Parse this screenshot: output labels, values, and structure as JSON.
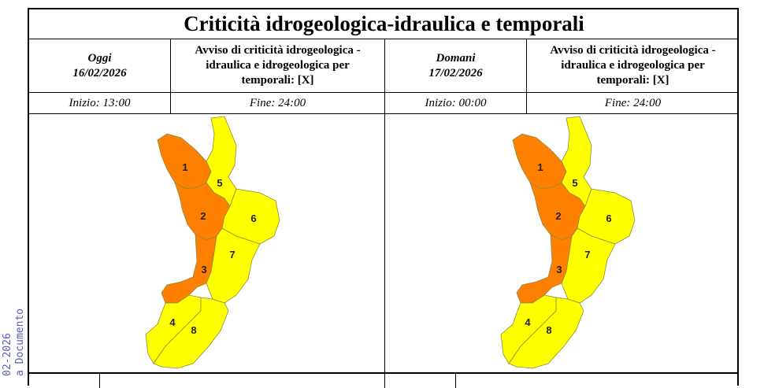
{
  "side_text": {
    "line1": "02-2026",
    "line2": "a Documento"
  },
  "title": "Criticità idrogeologica-idraulica e temporali",
  "today": {
    "label": "Oggi",
    "date": "16/02/2026",
    "notice": "Avviso di criticità idrogeologica - idraulica e idrogeologica per temporali: [X]",
    "start": "Inizio: 13:00",
    "end": "Fine: 24:00"
  },
  "tomorrow": {
    "label": "Domani",
    "date": "17/02/2026",
    "notice": "Avviso di criticità idrogeologica - idraulica e idrogeologica per temporali: [X]",
    "start": "Inizio: 00:00",
    "end": "Fine: 24:00"
  },
  "colors": {
    "orange": "#ff7f00",
    "yellow": "#ffff00"
  },
  "maps": {
    "today": [
      {
        "zone": "1",
        "level": "orange"
      },
      {
        "zone": "2",
        "level": "orange"
      },
      {
        "zone": "3",
        "level": "orange"
      },
      {
        "zone": "4",
        "level": "yellow"
      },
      {
        "zone": "5",
        "level": "yellow"
      },
      {
        "zone": "6",
        "level": "yellow"
      },
      {
        "zone": "7",
        "level": "yellow"
      },
      {
        "zone": "8",
        "level": "yellow"
      }
    ],
    "tomorrow": [
      {
        "zone": "1",
        "level": "orange"
      },
      {
        "zone": "2",
        "level": "orange"
      },
      {
        "zone": "3",
        "level": "orange"
      },
      {
        "zone": "4",
        "level": "yellow"
      },
      {
        "zone": "5",
        "level": "yellow"
      },
      {
        "zone": "6",
        "level": "yellow"
      },
      {
        "zone": "7",
        "level": "yellow"
      },
      {
        "zone": "8",
        "level": "yellow"
      }
    ]
  }
}
